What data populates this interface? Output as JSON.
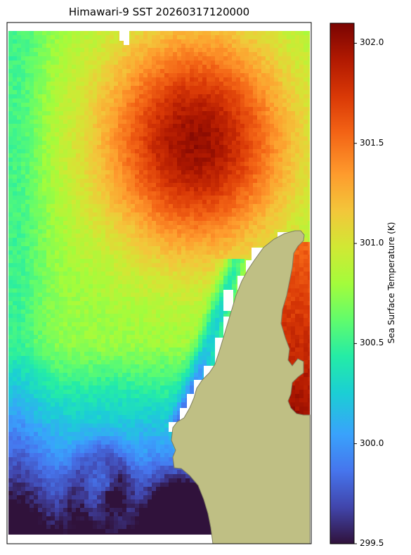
{
  "title": "Himawari-9 SST 20260317120000",
  "colorbar": {
    "label": "Sea Surface Temperature (K)",
    "vmin": 299.5,
    "vmax": 302.1,
    "ticks": [
      {
        "value": 302.0,
        "label": "302.0"
      },
      {
        "value": 301.5,
        "label": "301.5"
      },
      {
        "value": 301.0,
        "label": "301.0"
      },
      {
        "value": 300.5,
        "label": "300.5"
      },
      {
        "value": 300.0,
        "label": "300.0"
      },
      {
        "value": 299.5,
        "label": "299.5"
      }
    ],
    "colormap": "turbo"
  },
  "colors": {
    "land": "#bfbf84",
    "coast": "#808060"
  }
}
